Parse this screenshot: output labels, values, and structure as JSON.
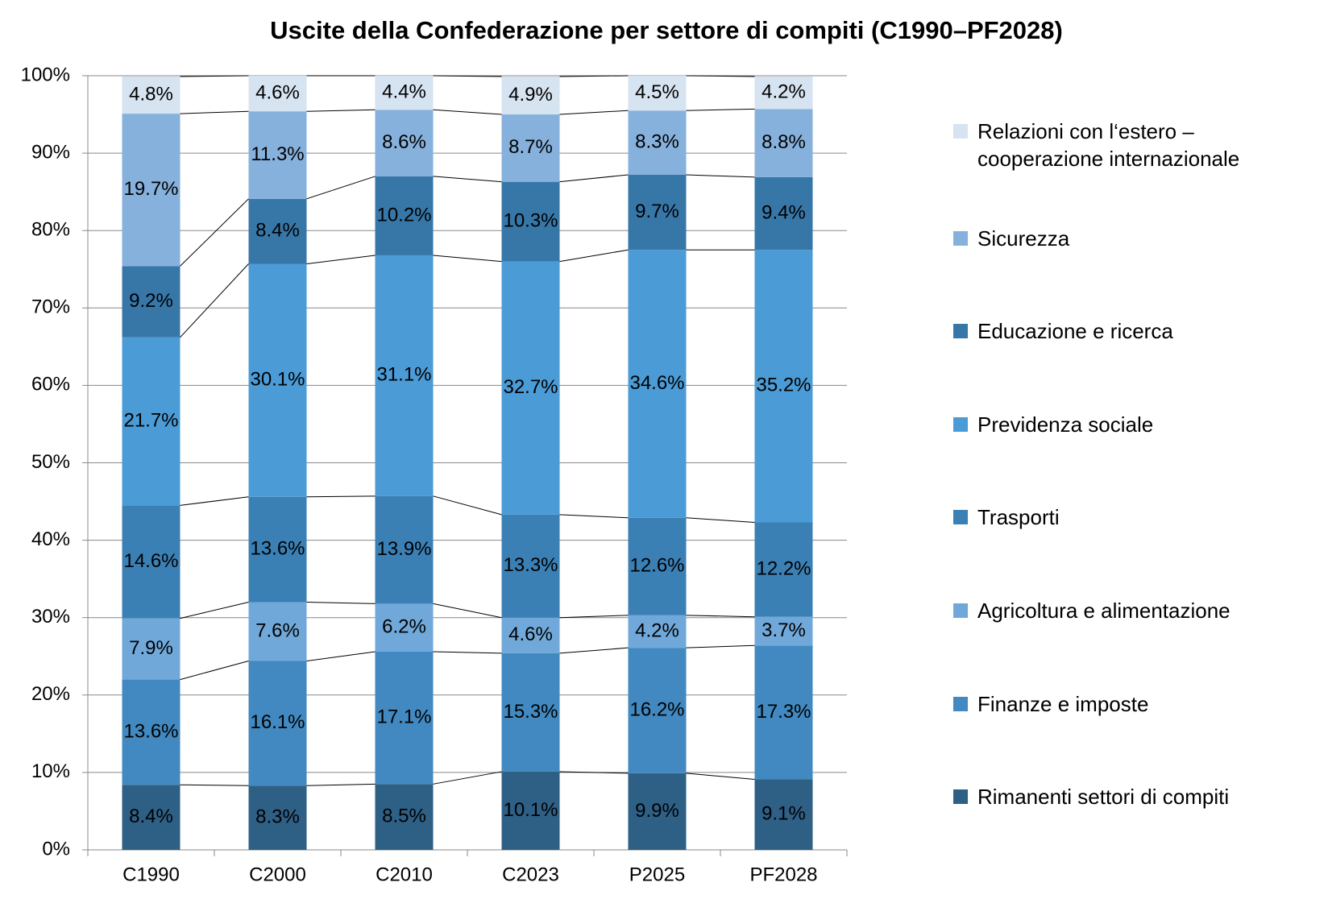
{
  "chart_data": {
    "type": "stacked_bar",
    "title": "Uscite della Confederazione per settore di compiti (C1990–PF2028)",
    "categories": [
      "C1990",
      "C2000",
      "C2010",
      "C2023",
      "P2025",
      "PF2028"
    ],
    "ylim": [
      0,
      100
    ],
    "yticks": [
      {
        "value": 0,
        "label": "0%"
      },
      {
        "value": 10,
        "label": "10%"
      },
      {
        "value": 20,
        "label": "20%"
      },
      {
        "value": 30,
        "label": "30%"
      },
      {
        "value": 40,
        "label": "40%"
      },
      {
        "value": 50,
        "label": "50%"
      },
      {
        "value": 60,
        "label": "60%"
      },
      {
        "value": 70,
        "label": "70%"
      },
      {
        "value": 80,
        "label": "80%"
      },
      {
        "value": 90,
        "label": "90%"
      },
      {
        "value": 100,
        "label": "100%"
      }
    ],
    "grid": true,
    "legend": "right",
    "series": [
      {
        "name": "Rimanenti settori di compiti",
        "color": "#2e5f85",
        "values": [
          8.4,
          8.3,
          8.5,
          10.1,
          9.9,
          9.1
        ],
        "value_labels": [
          "8.4%",
          "8.3%",
          "8.5%",
          "10.1%",
          "9.9%",
          "9.1%"
        ]
      },
      {
        "name": "Finanze e imposte",
        "color": "#4189c0",
        "values": [
          13.6,
          16.1,
          17.1,
          15.3,
          16.2,
          17.3
        ],
        "value_labels": [
          "13.6%",
          "16.1%",
          "17.1%",
          "15.3%",
          "16.2%",
          "17.3%"
        ]
      },
      {
        "name": "Agricoltura e alimentazione",
        "color": "#70a9d9",
        "values": [
          7.9,
          7.6,
          6.2,
          4.6,
          4.2,
          3.7
        ],
        "value_labels": [
          "7.9%",
          "7.6%",
          "6.2%",
          "4.6%",
          "4.2%",
          "3.7%"
        ]
      },
      {
        "name": "Trasporti",
        "color": "#3b80b5",
        "values": [
          14.6,
          13.6,
          13.9,
          13.3,
          12.6,
          12.2
        ],
        "value_labels": [
          "14.6%",
          "13.6%",
          "13.9%",
          "13.3%",
          "12.6%",
          "12.2%"
        ]
      },
      {
        "name": "Previdenza sociale",
        "color": "#4b9bd6",
        "values": [
          21.7,
          30.1,
          31.1,
          32.7,
          34.6,
          35.2
        ],
        "value_labels": [
          "21.7%",
          "30.1%",
          "31.1%",
          "32.7%",
          "34.6%",
          "35.2%"
        ]
      },
      {
        "name": "Educazione e ricerca",
        "color": "#3777a8",
        "values": [
          9.2,
          8.4,
          10.2,
          10.3,
          9.7,
          9.4
        ],
        "value_labels": [
          "9.2%",
          "8.4%",
          "10.2%",
          "10.3%",
          "9.7%",
          "9.4%"
        ]
      },
      {
        "name": "Sicurezza",
        "color": "#86b1dc",
        "values": [
          19.7,
          11.3,
          8.6,
          8.7,
          8.3,
          8.8
        ],
        "value_labels": [
          "19.7%",
          "11.3%",
          "8.6%",
          "8.7%",
          "8.3%",
          "8.8%"
        ]
      },
      {
        "name": "Relazioni con l‘estero – cooperazione internazionale",
        "color": "#d6e3f0",
        "values": [
          4.8,
          4.6,
          4.4,
          4.9,
          4.5,
          4.2
        ],
        "value_labels": [
          "4.8%",
          "4.6%",
          "4.4%",
          "4.9%",
          "4.5%",
          "4.2%"
        ]
      }
    ]
  }
}
